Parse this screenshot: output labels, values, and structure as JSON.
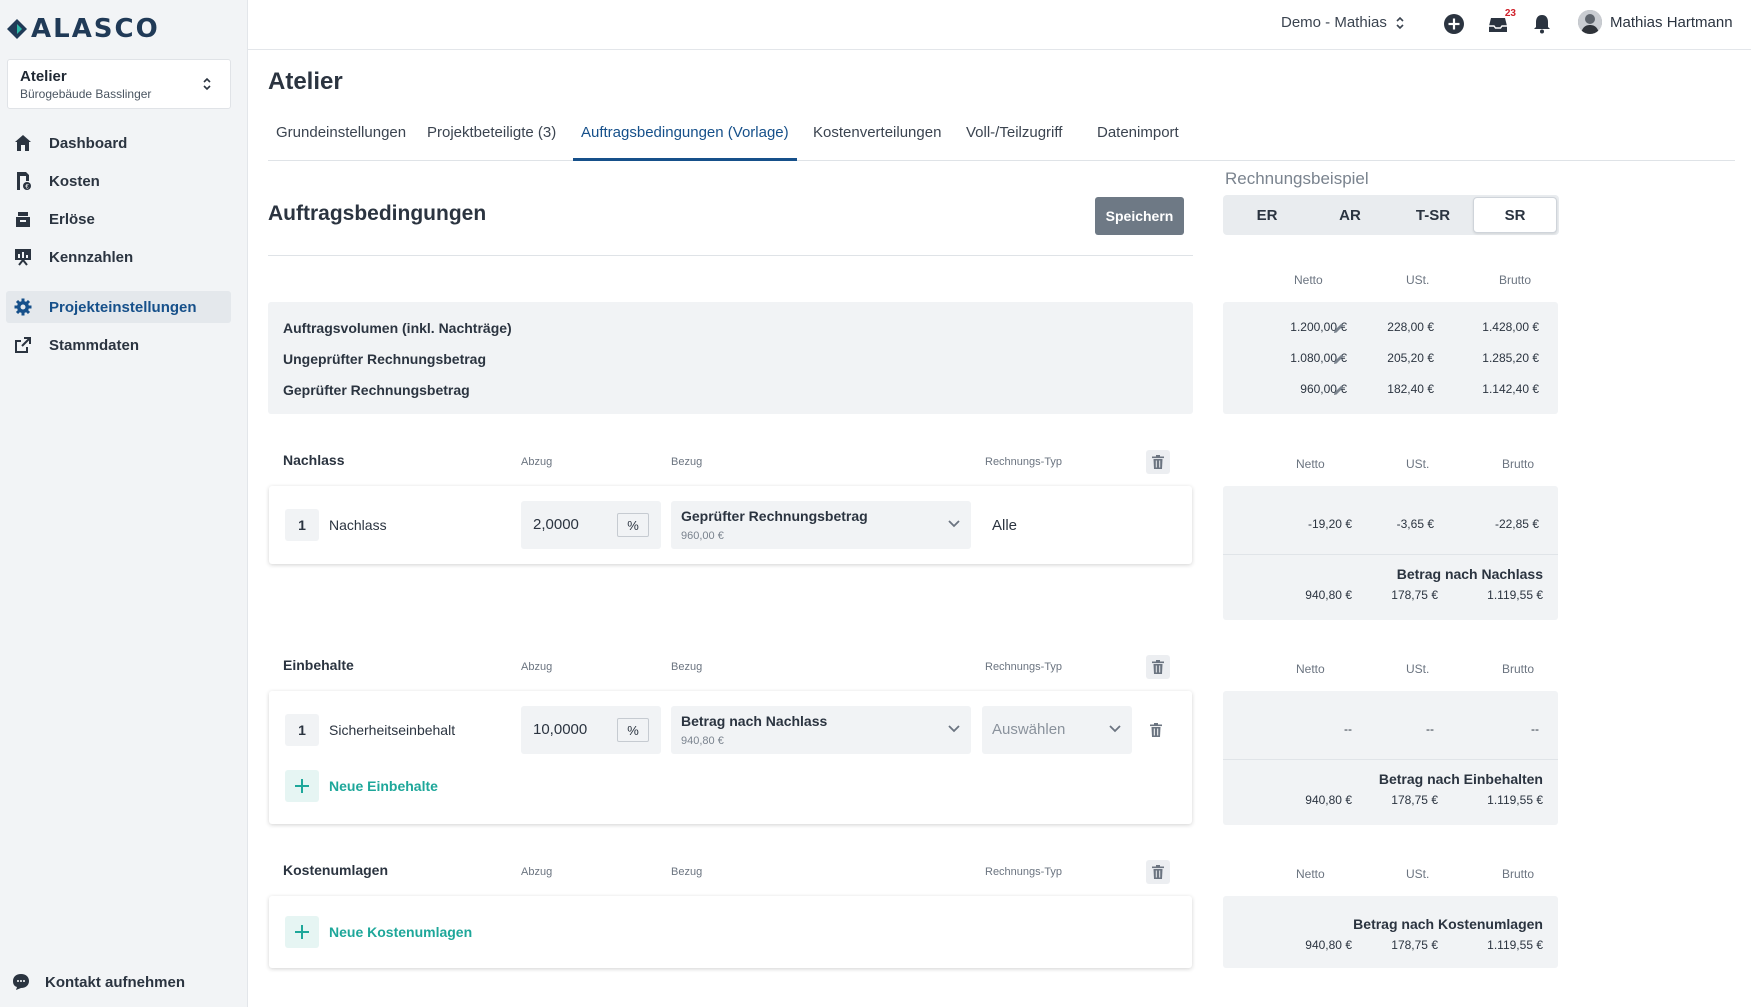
{
  "app": {
    "logo_text": "ALASCO"
  },
  "project": {
    "name": "Atelier",
    "building": "Bürogebäude Basslinger"
  },
  "sidebar": {
    "items": [
      {
        "label": "Dashboard",
        "icon": "home-icon"
      },
      {
        "label": "Kosten",
        "icon": "cost-icon"
      },
      {
        "label": "Erlöse",
        "icon": "revenue-icon"
      },
      {
        "label": "Kennzahlen",
        "icon": "chart-board-icon"
      },
      {
        "label": "Projekteinstellungen",
        "icon": "gear-icon",
        "active": true
      },
      {
        "label": "Stammdaten",
        "icon": "external-link-icon"
      }
    ],
    "contact": "Kontakt aufnehmen"
  },
  "topbar": {
    "tenant": "Demo - Mathias",
    "inbox_badge": "23",
    "user_name": "Mathias Hartmann"
  },
  "page": {
    "title": "Atelier",
    "tabs": [
      {
        "label": "Grundeinstellungen"
      },
      {
        "label": "Projektbeteiligte (3)"
      },
      {
        "label": "Auftragsbedingungen (Vorlage)",
        "active": true
      },
      {
        "label": "Kostenverteilungen"
      },
      {
        "label": "Voll-/Teilzugriff"
      },
      {
        "label": "Datenimport"
      }
    ]
  },
  "conditions": {
    "title": "Auftragsbedingungen",
    "save_label": "Speichern",
    "summary_rows": [
      "Auftragsvolumen (inkl. Nachträge)",
      "Ungeprüfter Rechnungsbetrag",
      "Geprüfter Rechnungsbetrag"
    ],
    "col_heads": {
      "abzug": "Abzug",
      "bezug": "Bezug",
      "typ": "Rechnungs-Typ"
    },
    "nachlass": {
      "title": "Nachlass",
      "row": {
        "index": "1",
        "label": "Nachlass",
        "value": "2,0000",
        "unit": "%",
        "bezug": "Geprüfter Rechnungsbetrag",
        "bezug_amount": "960,00 €",
        "typ": "Alle"
      }
    },
    "einbehalte": {
      "title": "Einbehalte",
      "row": {
        "index": "1",
        "label": "Sicherheitseinbehalt",
        "value": "10,0000",
        "unit": "%",
        "bezug": "Betrag nach Nachlass",
        "bezug_amount": "940,80 €",
        "typ_placeholder": "Auswählen"
      },
      "add_label": "Neue Einbehalte"
    },
    "kostenumlagen": {
      "title": "Kostenumlagen",
      "add_label": "Neue Kostenumlagen"
    }
  },
  "example": {
    "title": "Rechnungsbeispiel",
    "segments": [
      "ER",
      "AR",
      "T-SR",
      "SR"
    ],
    "active_segment": "SR",
    "heads": {
      "netto": "Netto",
      "ust": "USt.",
      "brutto": "Brutto"
    },
    "summary": [
      {
        "netto": "1.200,00 €",
        "ust": "228,00 €",
        "brutto": "1.428,00 €"
      },
      {
        "netto": "1.080,00 €",
        "ust": "205,20 €",
        "brutto": "1.285,20 €"
      },
      {
        "netto": "960,00 €",
        "ust": "182,40 €",
        "brutto": "1.142,40 €"
      }
    ],
    "nachlass": {
      "row": {
        "netto": "-19,20 €",
        "ust": "-3,65 €",
        "brutto": "-22,85 €"
      },
      "total_label": "Betrag nach Nachlass",
      "total": {
        "netto": "940,80 €",
        "ust": "178,75 €",
        "brutto": "1.119,55 €"
      }
    },
    "einbehalte": {
      "row": {
        "netto": "--",
        "ust": "--",
        "brutto": "--"
      },
      "total_label": "Betrag nach Einbehalten",
      "total": {
        "netto": "940,80 €",
        "ust": "178,75 €",
        "brutto": "1.119,55 €"
      }
    },
    "kostenumlagen": {
      "total_label": "Betrag nach Kostenumlagen",
      "total": {
        "netto": "940,80 €",
        "ust": "178,75 €",
        "brutto": "1.119,55 €"
      }
    }
  }
}
